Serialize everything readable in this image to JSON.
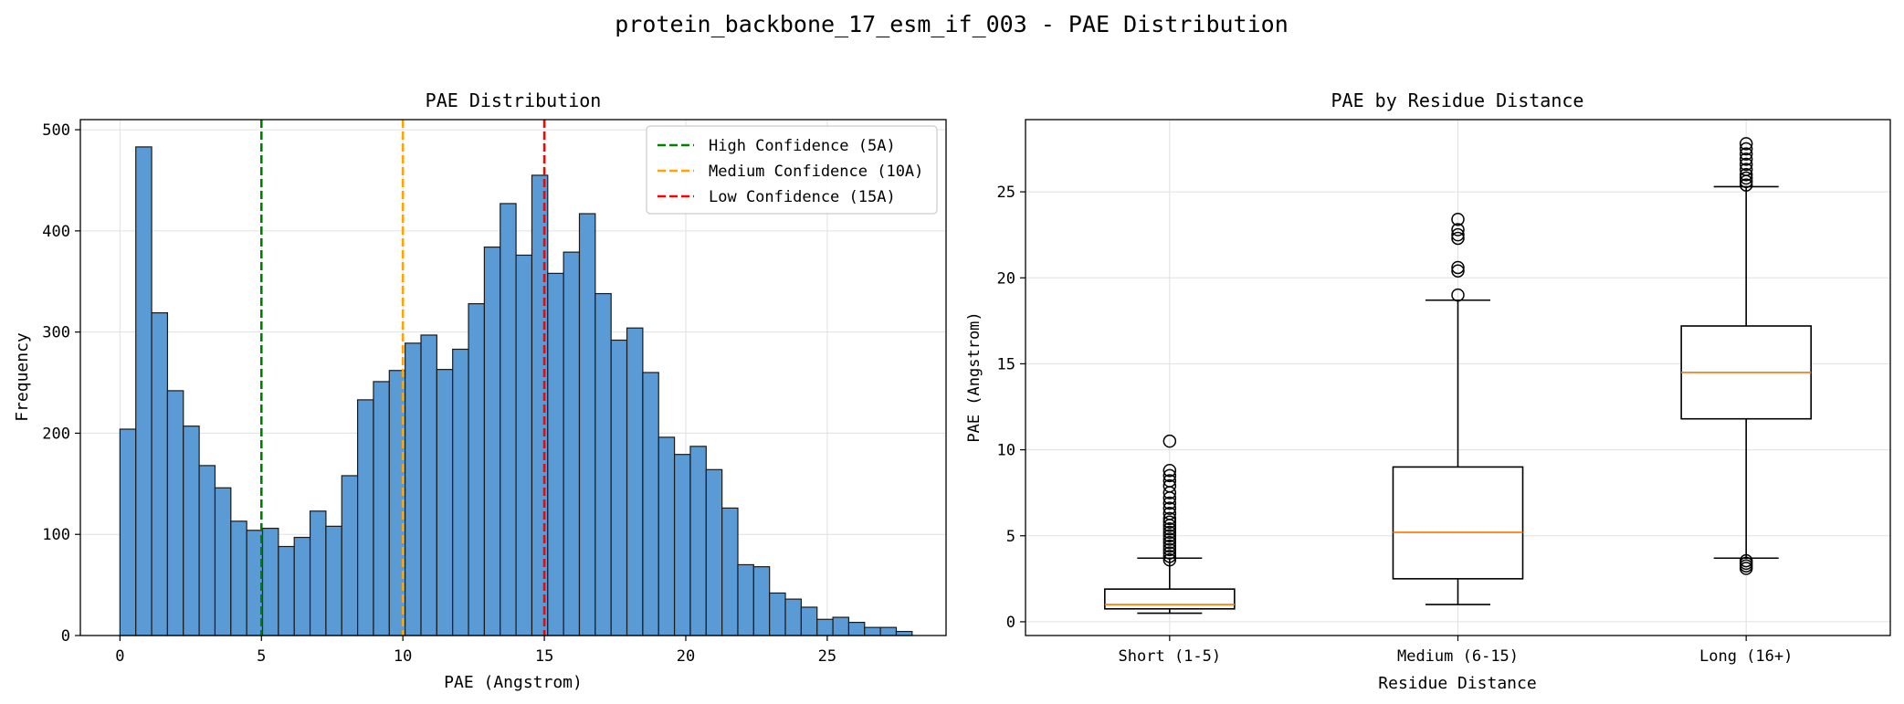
{
  "figure": {
    "suptitle": "protein_backbone_17_esm_if_003 - PAE Distribution"
  },
  "chart_data": [
    {
      "type": "bar",
      "subtype": "histogram",
      "title": "PAE Distribution",
      "xlabel": "PAE (Angstrom)",
      "ylabel": "Frequency",
      "xlim": [
        -1.4,
        29.2
      ],
      "ylim": [
        0,
        510
      ],
      "xticks": [
        0,
        5,
        10,
        15,
        20,
        25
      ],
      "yticks": [
        0,
        100,
        200,
        300,
        400,
        500
      ],
      "grid": true,
      "bar_color": "#5b9bd5",
      "bin_start": 0,
      "bin_width": 0.56,
      "values": [
        204,
        483,
        319,
        242,
        207,
        168,
        146,
        113,
        104,
        106,
        88,
        97,
        123,
        108,
        158,
        233,
        251,
        262,
        289,
        297,
        263,
        283,
        328,
        384,
        427,
        376,
        455,
        358,
        379,
        417,
        338,
        292,
        304,
        260,
        196,
        179,
        187,
        164,
        126,
        70,
        68,
        42,
        36,
        28,
        16,
        18,
        13,
        8,
        8,
        4
      ],
      "legend": {
        "position": "upper right",
        "entries": [
          {
            "label": "High Confidence (5A)",
            "color": "#008000",
            "x": 5
          },
          {
            "label": "Medium Confidence (10A)",
            "color": "#ffa500",
            "x": 10
          },
          {
            "label": "Low Confidence (15A)",
            "color": "#ff0000",
            "x": 15
          }
        ]
      }
    },
    {
      "type": "box",
      "title": "PAE by Residue Distance",
      "xlabel": "Residue Distance",
      "ylabel": "PAE (Angstrom)",
      "ylim": [
        -0.8,
        29.2
      ],
      "yticks": [
        0,
        5,
        10,
        15,
        20,
        25
      ],
      "grid": true,
      "median_color": "#ff7f0e",
      "categories": [
        "Short (1-5)",
        "Medium (6-15)",
        "Long (16+)"
      ],
      "boxes": [
        {
          "whisker_low": 0.5,
          "q1": 0.75,
          "median": 1.0,
          "q3": 1.9,
          "whisker_high": 3.7,
          "outliers": [
            3.6,
            3.8,
            4.0,
            4.2,
            4.4,
            4.6,
            4.8,
            5.0,
            5.2,
            5.4,
            5.6,
            5.8,
            6.0,
            6.3,
            6.6,
            6.9,
            7.2,
            7.5,
            7.9,
            8.2,
            8.5,
            8.8,
            10.5
          ]
        },
        {
          "whisker_low": 1.0,
          "q1": 2.5,
          "median": 5.2,
          "q3": 9.0,
          "whisker_high": 18.7,
          "outliers": [
            19.0,
            20.4,
            20.6,
            22.3,
            22.5,
            22.8,
            23.4
          ]
        },
        {
          "whisker_low": 3.7,
          "q1": 11.8,
          "median": 14.5,
          "q3": 17.2,
          "whisker_high": 25.3,
          "outliers": [
            3.1,
            3.25,
            3.4,
            3.55,
            25.4,
            25.6,
            25.8,
            26.0,
            26.3,
            26.6,
            26.9,
            27.2,
            27.5,
            27.8
          ]
        }
      ]
    }
  ]
}
